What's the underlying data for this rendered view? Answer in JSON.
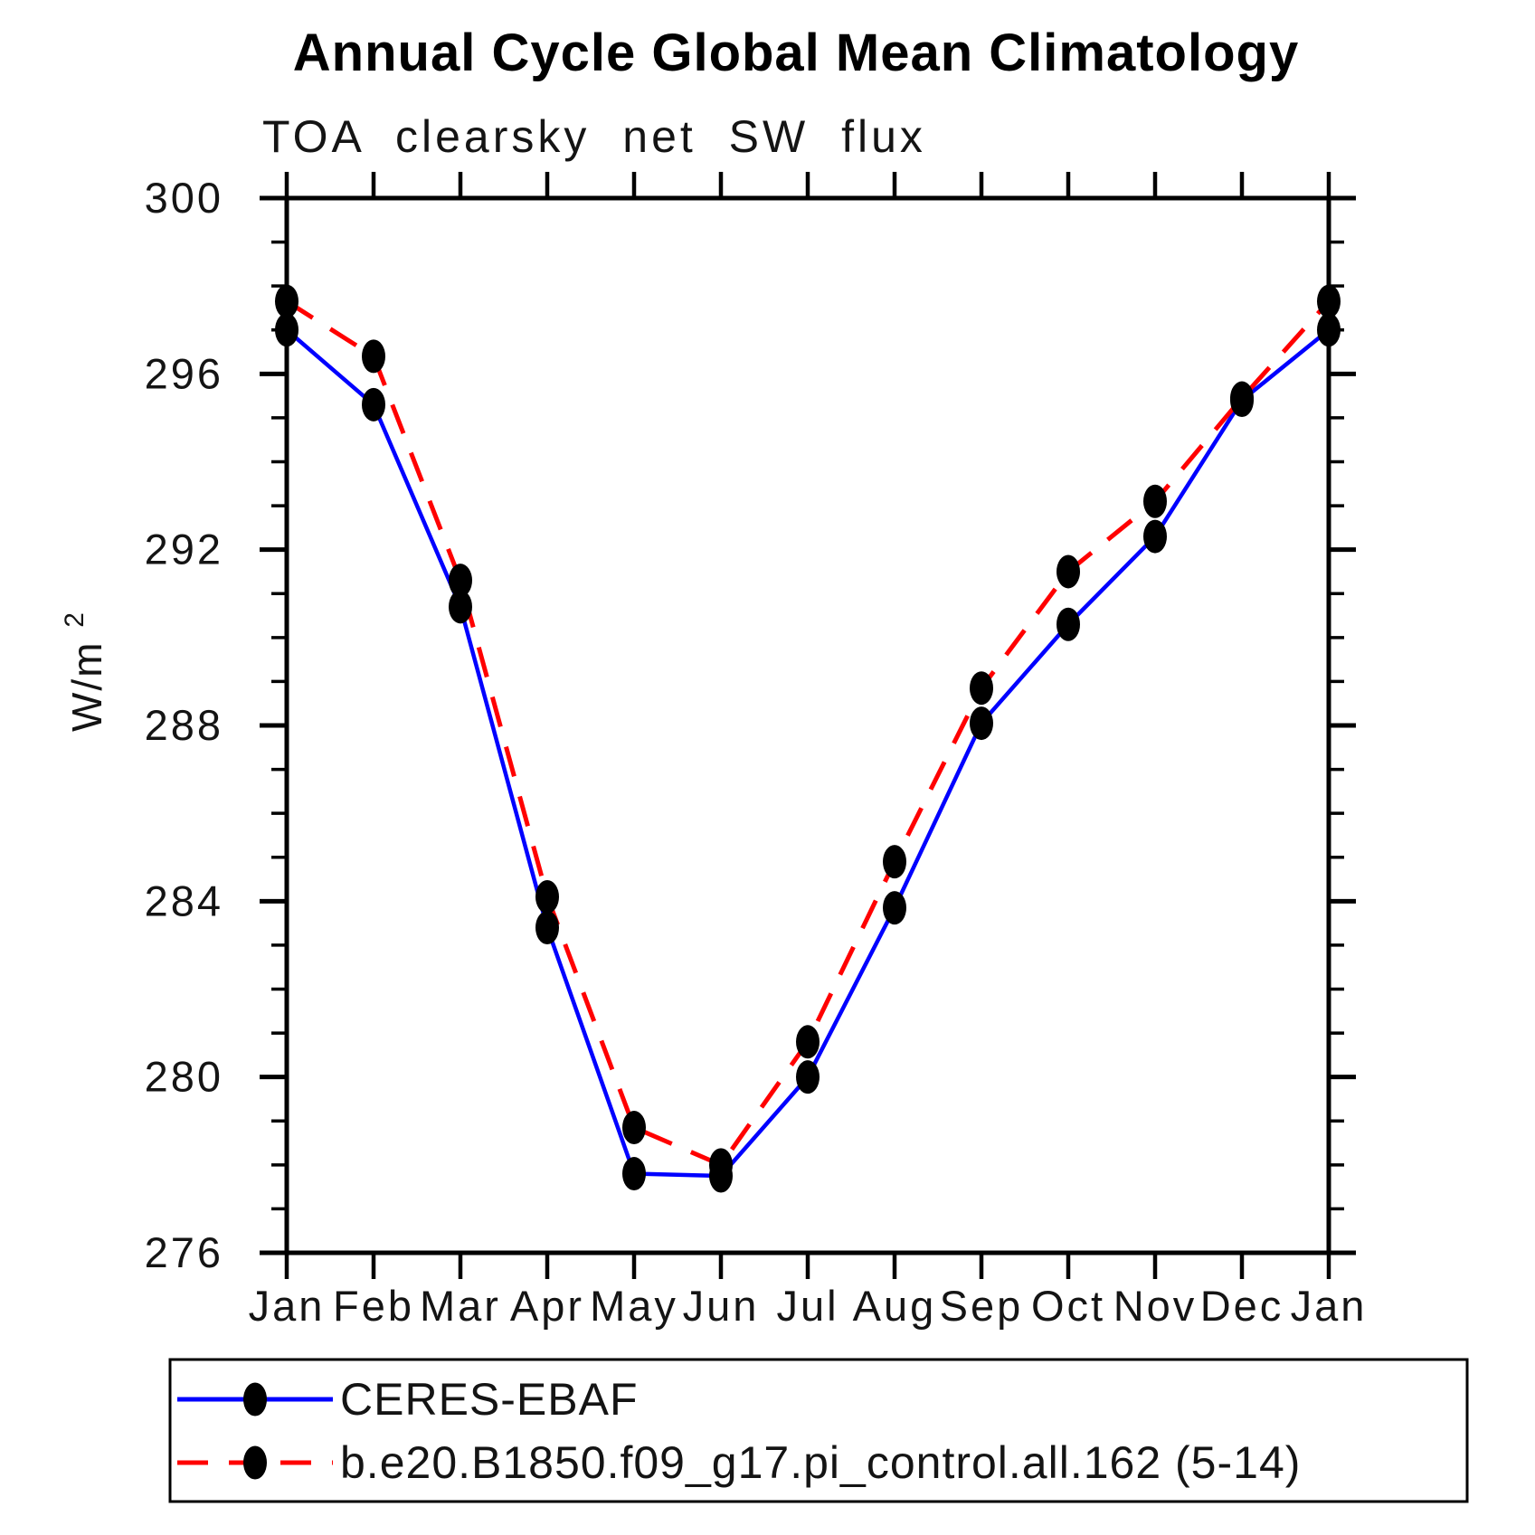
{
  "chart_data": {
    "type": "line",
    "title": "Annual Cycle Global Mean Climatology",
    "subtitle": "TOA clearsky net SW flux",
    "ylabel": "W/m²",
    "ylabel_main": "W/m",
    "ylabel_sup": "2",
    "xlabel": "",
    "x_ticklabels": [
      "Jan",
      "Feb",
      "Mar",
      "Apr",
      "May",
      "Jun",
      "Jul",
      "Aug",
      "Sep",
      "Oct",
      "Nov",
      "Dec",
      "Jan"
    ],
    "ylim": [
      276,
      300
    ],
    "ytick_major": [
      300,
      296,
      292,
      288,
      284,
      280,
      276
    ],
    "ytick_minor_step": 1,
    "grid": false,
    "legend_position": "bottom-left-box",
    "axis_color": "#000000",
    "marker_shape": "filled-ellipse",
    "series": [
      {
        "name": "CERES-EBAF",
        "color": "#0000ff",
        "line_style": "solid",
        "marker_color": "#000000",
        "values": [
          297.0,
          295.3,
          290.7,
          283.4,
          277.8,
          277.75,
          280.0,
          283.85,
          288.05,
          290.3,
          292.3,
          295.4,
          297.0
        ]
      },
      {
        "name": "b.e20.B1850.f09_g17.pi_control.all.162 (5-14)",
        "color": "#ff0000",
        "line_style": "dashed",
        "marker_color": "#000000",
        "values": [
          297.65,
          296.4,
          291.3,
          284.1,
          278.85,
          278.0,
          280.8,
          284.9,
          288.85,
          291.5,
          293.1,
          295.45,
          297.65
        ]
      }
    ]
  }
}
